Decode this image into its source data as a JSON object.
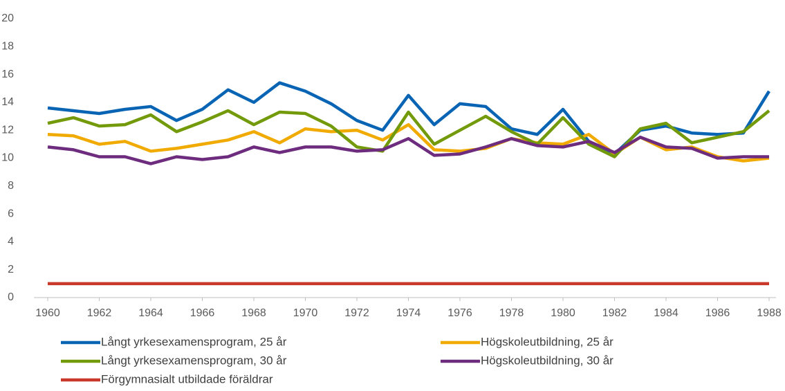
{
  "chart_data": {
    "type": "line",
    "x": [
      1960,
      1961,
      1962,
      1963,
      1964,
      1965,
      1966,
      1967,
      1968,
      1969,
      1970,
      1971,
      1972,
      1973,
      1974,
      1975,
      1976,
      1977,
      1978,
      1979,
      1980,
      1981,
      1982,
      1983,
      1984,
      1985,
      1986,
      1987,
      1988
    ],
    "xlim": [
      1960,
      1988
    ],
    "xticks": [
      1960,
      1962,
      1964,
      1966,
      1968,
      1970,
      1972,
      1974,
      1976,
      1978,
      1980,
      1982,
      1984,
      1986,
      1988
    ],
    "ylim": [
      0,
      20
    ],
    "yticks": [
      0,
      2,
      4,
      6,
      8,
      10,
      12,
      14,
      16,
      18,
      20
    ],
    "grid": false,
    "legend": "bottom",
    "series": [
      {
        "name": "Långt yrkesexamensprogram, 25 år",
        "color": "#0a64b4",
        "values": [
          13.6,
          13.4,
          13.2,
          13.5,
          13.7,
          12.7,
          13.5,
          14.9,
          14.0,
          15.4,
          14.8,
          13.9,
          12.7,
          12.0,
          14.5,
          12.4,
          13.9,
          13.7,
          12.1,
          11.7,
          13.5,
          11.2,
          10.3,
          12.0,
          12.3,
          11.8,
          11.7,
          11.8,
          14.8
        ]
      },
      {
        "name": "Högskoleutbildning, 25 år",
        "color": "#f0aa00",
        "values": [
          11.7,
          11.6,
          11.0,
          11.2,
          10.5,
          10.7,
          11.0,
          11.3,
          11.9,
          11.1,
          12.1,
          11.9,
          12.0,
          11.3,
          12.4,
          10.6,
          10.5,
          10.7,
          11.4,
          11.1,
          11.0,
          11.7,
          10.3,
          11.5,
          10.6,
          10.8,
          10.1,
          9.8,
          10.0
        ]
      },
      {
        "name": "Långt yrkesexamensprogram, 30 år",
        "color": "#739a0a",
        "values": [
          12.5,
          12.9,
          12.3,
          12.4,
          13.1,
          11.9,
          12.6,
          13.4,
          12.4,
          13.3,
          13.2,
          12.3,
          10.8,
          10.5,
          13.3,
          11.0,
          12.0,
          13.0,
          11.9,
          11.0,
          12.9,
          11.0,
          10.1,
          12.1,
          12.5,
          11.1,
          11.5,
          11.9,
          13.4
        ]
      },
      {
        "name": "Högskoleutbildning, 30 år",
        "color": "#6e2c7e",
        "values": [
          10.8,
          10.6,
          10.1,
          10.1,
          9.6,
          10.1,
          9.9,
          10.1,
          10.8,
          10.4,
          10.8,
          10.8,
          10.5,
          10.6,
          11.4,
          10.2,
          10.3,
          10.8,
          11.4,
          10.9,
          10.8,
          11.2,
          10.4,
          11.5,
          10.8,
          10.7,
          10.0,
          10.1,
          10.1
        ]
      },
      {
        "name": "Förgymnasialt utbildade föräldrar",
        "color": "#c8392b",
        "values": [
          1,
          1,
          1,
          1,
          1,
          1,
          1,
          1,
          1,
          1,
          1,
          1,
          1,
          1,
          1,
          1,
          1,
          1,
          1,
          1,
          1,
          1,
          1,
          1,
          1,
          1,
          1,
          1,
          1
        ]
      }
    ]
  }
}
